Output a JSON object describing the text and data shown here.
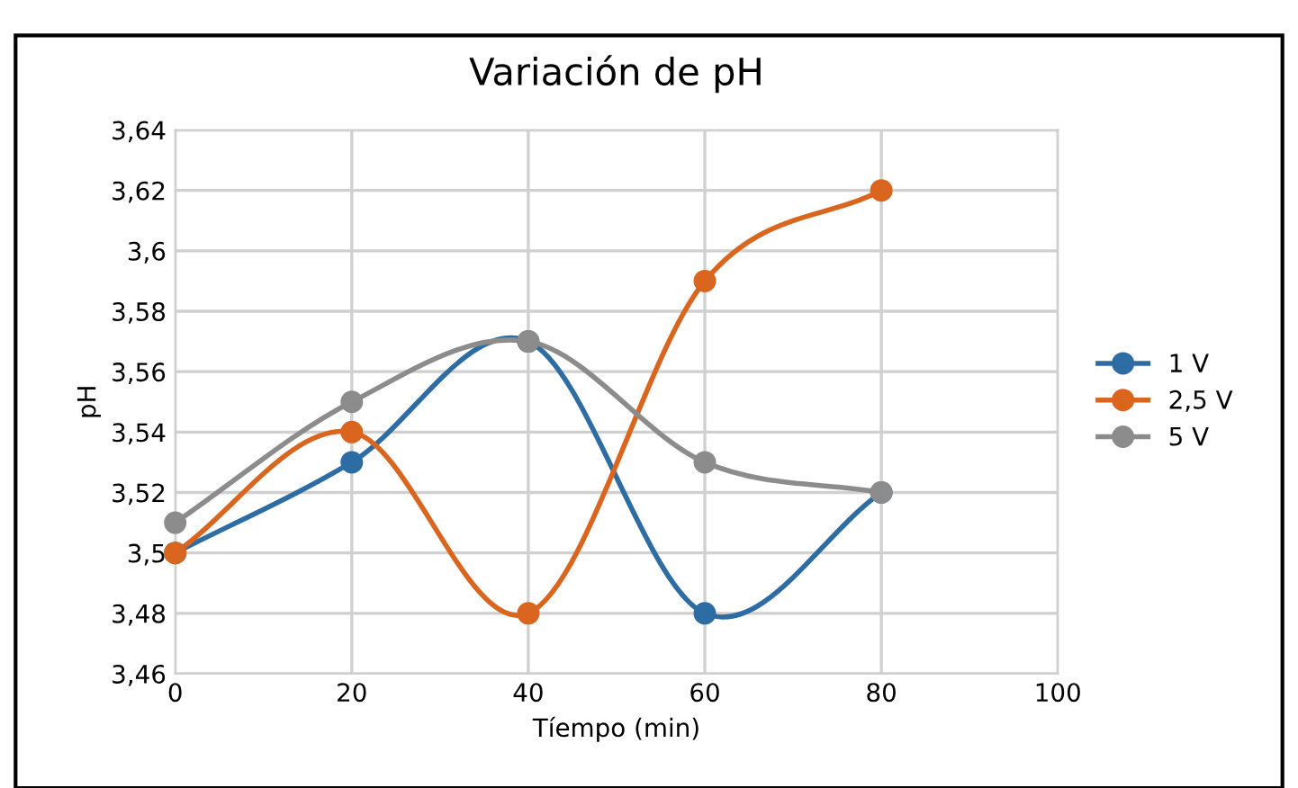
{
  "chart_data": {
    "type": "line",
    "title": "Variación de pH",
    "xlabel": "Tíempo (min)",
    "ylabel": "pH",
    "x": [
      0,
      20,
      40,
      60,
      80
    ],
    "series": [
      {
        "name": "1 V",
        "color": "#2e6ca4",
        "values": [
          3.5,
          3.53,
          3.57,
          3.48,
          3.52
        ]
      },
      {
        "name": "2,5 V",
        "color": "#d9651f",
        "values": [
          3.5,
          3.54,
          3.48,
          3.59,
          3.62
        ]
      },
      {
        "name": "5 V",
        "color": "#8c8c8c",
        "values": [
          3.51,
          3.55,
          3.57,
          3.53,
          3.52
        ]
      }
    ],
    "xlim": [
      0,
      100
    ],
    "xticks": [
      0,
      20,
      40,
      60,
      80,
      100
    ],
    "ylim": [
      3.46,
      3.64
    ],
    "yticks": [
      {
        "value": 3.46,
        "label": "3,46"
      },
      {
        "value": 3.48,
        "label": "3,48"
      },
      {
        "value": 3.5,
        "label": "3,5"
      },
      {
        "value": 3.52,
        "label": "3,52"
      },
      {
        "value": 3.54,
        "label": "3,54"
      },
      {
        "value": 3.56,
        "label": "3,56"
      },
      {
        "value": 3.58,
        "label": "3,58"
      },
      {
        "value": 3.6,
        "label": "3,6"
      },
      {
        "value": 3.62,
        "label": "3,62"
      },
      {
        "value": 3.64,
        "label": "3,64"
      }
    ],
    "grid": true,
    "legend": "right",
    "marker": "circle",
    "line_style": "solid"
  }
}
